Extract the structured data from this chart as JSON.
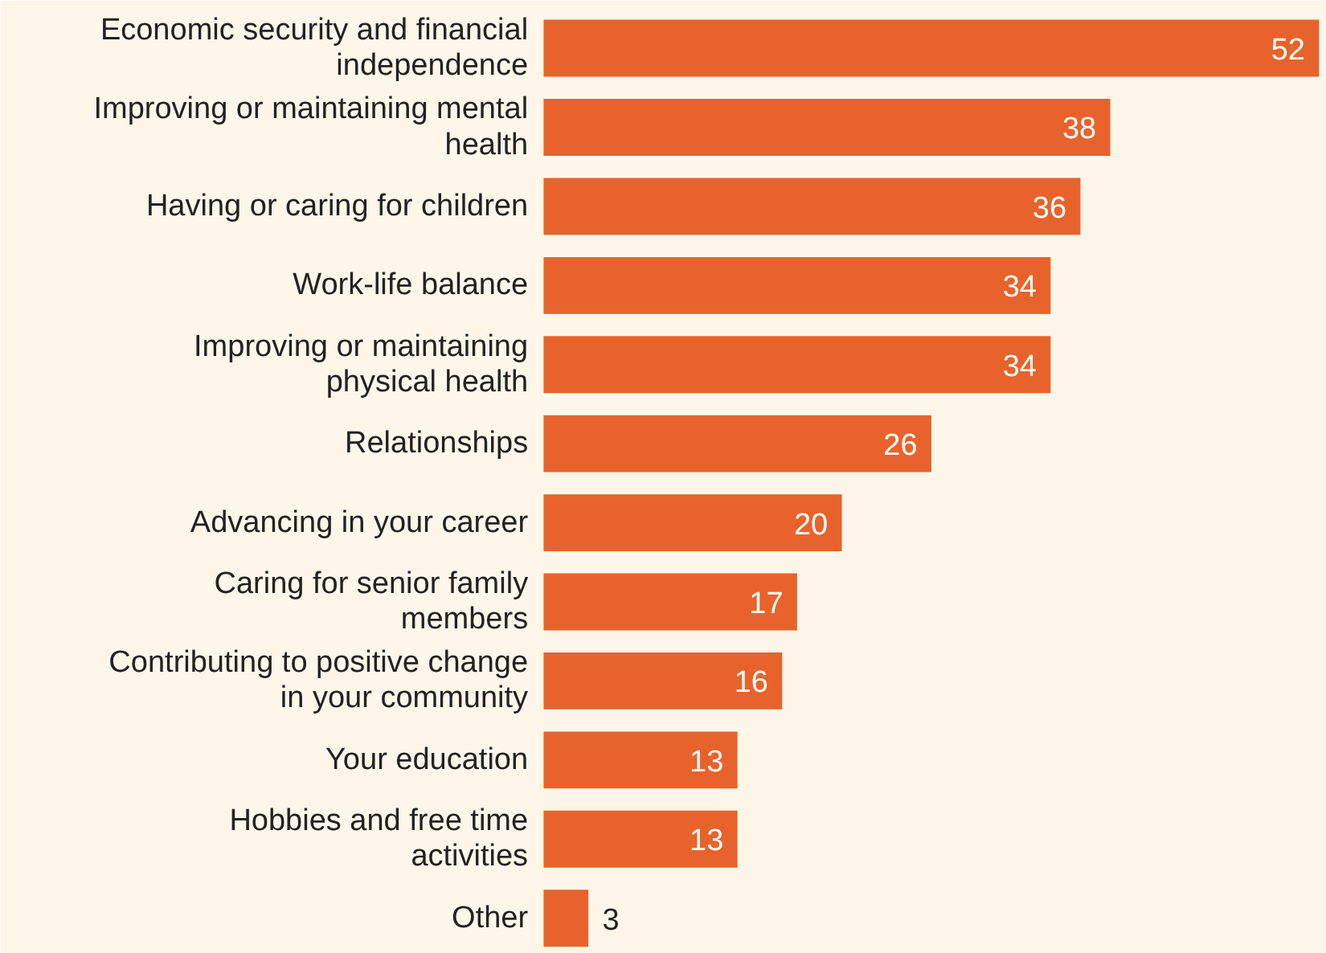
{
  "chart_data": {
    "type": "bar",
    "orientation": "horizontal",
    "data_labels": true,
    "grid": false,
    "categories": [
      "Economic security and financial independence",
      "Improving or maintaining mental health",
      "Having or caring for children",
      "Work-life balance",
      "Improving or maintaining physical health",
      "Relationships",
      "Advancing in your career",
      "Caring for senior family members",
      "Contributing to positive change in your community",
      "Your education",
      "Hobbies and free time activities",
      "Other"
    ],
    "values": [
      52,
      38,
      36,
      34,
      34,
      26,
      20,
      17,
      16,
      13,
      13,
      3
    ],
    "color": "#e8632b"
  }
}
